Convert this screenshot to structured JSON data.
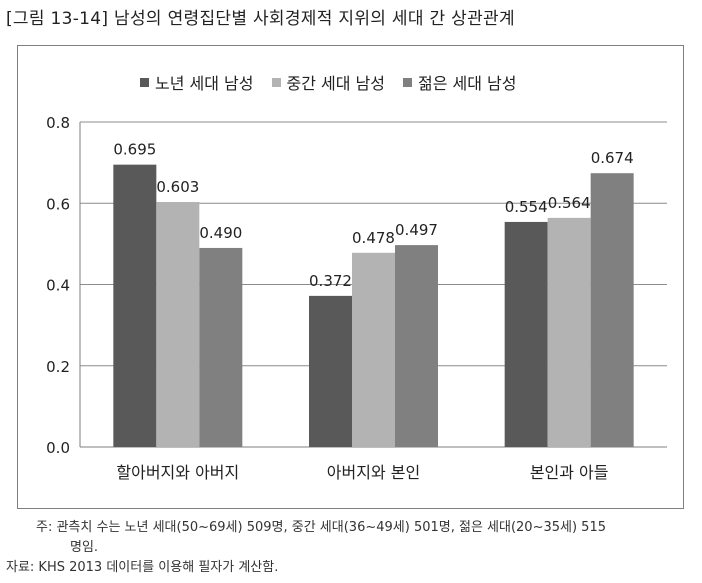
{
  "title": "[그림 13-14] 남성의 연령집단별 사회경제적 지위의 세대 간 상관관계",
  "chart_data": {
    "type": "bar",
    "categories": [
      "할아버지와 아버지",
      "아버지와 본인",
      "본인과 아들"
    ],
    "series": [
      {
        "name": "노년 세대 남성",
        "values": [
          0.695,
          0.372,
          0.554
        ],
        "labels": [
          "0.695",
          "0.372",
          "0.554"
        ],
        "color": "#595959"
      },
      {
        "name": "중간 세대 남성",
        "values": [
          0.603,
          0.478,
          0.564
        ],
        "labels": [
          "0.603",
          "0.478",
          "0.564"
        ],
        "color": "#b3b3b3"
      },
      {
        "name": "젊은 세대 남성",
        "values": [
          0.49,
          0.497,
          0.674
        ],
        "labels": [
          "0.490",
          "0.497",
          "0.674"
        ],
        "color": "#808080"
      }
    ],
    "ylim": [
      0,
      0.8
    ],
    "yticks": [
      "0.0",
      "0.2",
      "0.4",
      "0.6",
      "0.8"
    ],
    "grid": true,
    "legend_position": "top"
  },
  "notes": {
    "line1": "주:  관측치 수는 노년 세대(50~69세) 509명, 중간 세대(36~49세) 501명, 젊은 세대(20~35세) 515",
    "line2": "명임.",
    "source": "자료:  KHS 2013 데이터를 이용해 필자가 계산함."
  }
}
